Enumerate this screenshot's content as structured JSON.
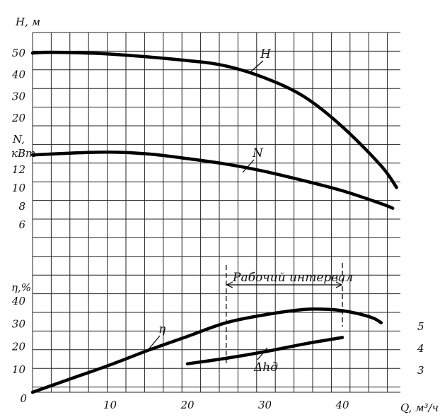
{
  "chart_data": {
    "type": "line",
    "x": {
      "label": "Q, м³/ч",
      "ticks": [
        0,
        10,
        20,
        30,
        40
      ],
      "range": [
        0,
        47.5
      ]
    },
    "axes": {
      "head": {
        "label": "H, м",
        "ticks": [
          50,
          40,
          30,
          20
        ],
        "range": [
          20,
          50
        ]
      },
      "power": {
        "label_line1": "N,",
        "label_line2": "кВт",
        "ticks": [
          12,
          10,
          8,
          6
        ],
        "range": [
          6,
          12
        ]
      },
      "efficiency": {
        "label": "η,%",
        "ticks": [
          40,
          30,
          20,
          10,
          0
        ],
        "range": [
          0,
          40
        ]
      },
      "npsh": {
        "ticks": [
          5,
          4,
          3
        ],
        "range": [
          3,
          5
        ]
      }
    },
    "series": [
      {
        "name": "H",
        "axis": "head",
        "x": [
          0,
          3,
          10,
          20,
          25,
          30,
          35,
          40,
          45,
          47
        ],
        "y": [
          50,
          50.3,
          49.5,
          46.5,
          44,
          38.5,
          30,
          16,
          -2,
          -12
        ]
      },
      {
        "name": "N",
        "axis": "power",
        "x": [
          0,
          5,
          10,
          15,
          20,
          25,
          30,
          35,
          40,
          45,
          46.5
        ],
        "y": [
          13.6,
          13.8,
          13.9,
          13.7,
          13.2,
          12.6,
          11.8,
          10.8,
          9.7,
          8.3,
          7.8
        ]
      },
      {
        "name": "η",
        "axis": "efficiency",
        "x": [
          0,
          5,
          10,
          15,
          20,
          25,
          30,
          35,
          38,
          40,
          42,
          44,
          45
        ],
        "y": [
          0,
          6,
          12,
          18.5,
          24.5,
          30.5,
          34,
          36.3,
          36.4,
          35.8,
          34.5,
          32.5,
          30.5
        ]
      },
      {
        "name": "Δhд",
        "axis": "npsh",
        "x": [
          20,
          25,
          30,
          35,
          40
        ],
        "y": [
          3.3,
          3.55,
          3.85,
          4.2,
          4.5
        ]
      }
    ],
    "annotation": {
      "text": "Рабочий интервал",
      "x_from": 25,
      "x_to": 40
    },
    "grid": true
  }
}
